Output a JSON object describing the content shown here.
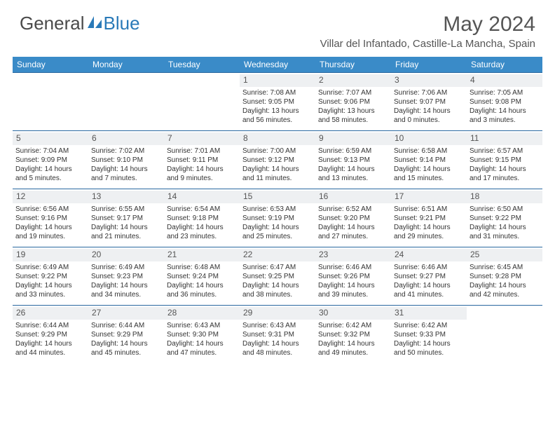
{
  "logo": {
    "text1": "General",
    "text2": "Blue"
  },
  "title": "May 2024",
  "location": "Villar del Infantado, Castille-La Mancha, Spain",
  "colors": {
    "header_bg": "#3a8bc8",
    "header_text": "#ffffff",
    "row_border": "#2968a0",
    "daynum_bg": "#eef0f2",
    "text": "#333333",
    "title_text": "#555555"
  },
  "day_headers": [
    "Sunday",
    "Monday",
    "Tuesday",
    "Wednesday",
    "Thursday",
    "Friday",
    "Saturday"
  ],
  "weeks": [
    [
      {
        "n": "",
        "sr": "",
        "ss": "",
        "dl": ""
      },
      {
        "n": "",
        "sr": "",
        "ss": "",
        "dl": ""
      },
      {
        "n": "",
        "sr": "",
        "ss": "",
        "dl": ""
      },
      {
        "n": "1",
        "sr": "Sunrise: 7:08 AM",
        "ss": "Sunset: 9:05 PM",
        "dl": "Daylight: 13 hours and 56 minutes."
      },
      {
        "n": "2",
        "sr": "Sunrise: 7:07 AM",
        "ss": "Sunset: 9:06 PM",
        "dl": "Daylight: 13 hours and 58 minutes."
      },
      {
        "n": "3",
        "sr": "Sunrise: 7:06 AM",
        "ss": "Sunset: 9:07 PM",
        "dl": "Daylight: 14 hours and 0 minutes."
      },
      {
        "n": "4",
        "sr": "Sunrise: 7:05 AM",
        "ss": "Sunset: 9:08 PM",
        "dl": "Daylight: 14 hours and 3 minutes."
      }
    ],
    [
      {
        "n": "5",
        "sr": "Sunrise: 7:04 AM",
        "ss": "Sunset: 9:09 PM",
        "dl": "Daylight: 14 hours and 5 minutes."
      },
      {
        "n": "6",
        "sr": "Sunrise: 7:02 AM",
        "ss": "Sunset: 9:10 PM",
        "dl": "Daylight: 14 hours and 7 minutes."
      },
      {
        "n": "7",
        "sr": "Sunrise: 7:01 AM",
        "ss": "Sunset: 9:11 PM",
        "dl": "Daylight: 14 hours and 9 minutes."
      },
      {
        "n": "8",
        "sr": "Sunrise: 7:00 AM",
        "ss": "Sunset: 9:12 PM",
        "dl": "Daylight: 14 hours and 11 minutes."
      },
      {
        "n": "9",
        "sr": "Sunrise: 6:59 AM",
        "ss": "Sunset: 9:13 PM",
        "dl": "Daylight: 14 hours and 13 minutes."
      },
      {
        "n": "10",
        "sr": "Sunrise: 6:58 AM",
        "ss": "Sunset: 9:14 PM",
        "dl": "Daylight: 14 hours and 15 minutes."
      },
      {
        "n": "11",
        "sr": "Sunrise: 6:57 AM",
        "ss": "Sunset: 9:15 PM",
        "dl": "Daylight: 14 hours and 17 minutes."
      }
    ],
    [
      {
        "n": "12",
        "sr": "Sunrise: 6:56 AM",
        "ss": "Sunset: 9:16 PM",
        "dl": "Daylight: 14 hours and 19 minutes."
      },
      {
        "n": "13",
        "sr": "Sunrise: 6:55 AM",
        "ss": "Sunset: 9:17 PM",
        "dl": "Daylight: 14 hours and 21 minutes."
      },
      {
        "n": "14",
        "sr": "Sunrise: 6:54 AM",
        "ss": "Sunset: 9:18 PM",
        "dl": "Daylight: 14 hours and 23 minutes."
      },
      {
        "n": "15",
        "sr": "Sunrise: 6:53 AM",
        "ss": "Sunset: 9:19 PM",
        "dl": "Daylight: 14 hours and 25 minutes."
      },
      {
        "n": "16",
        "sr": "Sunrise: 6:52 AM",
        "ss": "Sunset: 9:20 PM",
        "dl": "Daylight: 14 hours and 27 minutes."
      },
      {
        "n": "17",
        "sr": "Sunrise: 6:51 AM",
        "ss": "Sunset: 9:21 PM",
        "dl": "Daylight: 14 hours and 29 minutes."
      },
      {
        "n": "18",
        "sr": "Sunrise: 6:50 AM",
        "ss": "Sunset: 9:22 PM",
        "dl": "Daylight: 14 hours and 31 minutes."
      }
    ],
    [
      {
        "n": "19",
        "sr": "Sunrise: 6:49 AM",
        "ss": "Sunset: 9:22 PM",
        "dl": "Daylight: 14 hours and 33 minutes."
      },
      {
        "n": "20",
        "sr": "Sunrise: 6:49 AM",
        "ss": "Sunset: 9:23 PM",
        "dl": "Daylight: 14 hours and 34 minutes."
      },
      {
        "n": "21",
        "sr": "Sunrise: 6:48 AM",
        "ss": "Sunset: 9:24 PM",
        "dl": "Daylight: 14 hours and 36 minutes."
      },
      {
        "n": "22",
        "sr": "Sunrise: 6:47 AM",
        "ss": "Sunset: 9:25 PM",
        "dl": "Daylight: 14 hours and 38 minutes."
      },
      {
        "n": "23",
        "sr": "Sunrise: 6:46 AM",
        "ss": "Sunset: 9:26 PM",
        "dl": "Daylight: 14 hours and 39 minutes."
      },
      {
        "n": "24",
        "sr": "Sunrise: 6:46 AM",
        "ss": "Sunset: 9:27 PM",
        "dl": "Daylight: 14 hours and 41 minutes."
      },
      {
        "n": "25",
        "sr": "Sunrise: 6:45 AM",
        "ss": "Sunset: 9:28 PM",
        "dl": "Daylight: 14 hours and 42 minutes."
      }
    ],
    [
      {
        "n": "26",
        "sr": "Sunrise: 6:44 AM",
        "ss": "Sunset: 9:29 PM",
        "dl": "Daylight: 14 hours and 44 minutes."
      },
      {
        "n": "27",
        "sr": "Sunrise: 6:44 AM",
        "ss": "Sunset: 9:29 PM",
        "dl": "Daylight: 14 hours and 45 minutes."
      },
      {
        "n": "28",
        "sr": "Sunrise: 6:43 AM",
        "ss": "Sunset: 9:30 PM",
        "dl": "Daylight: 14 hours and 47 minutes."
      },
      {
        "n": "29",
        "sr": "Sunrise: 6:43 AM",
        "ss": "Sunset: 9:31 PM",
        "dl": "Daylight: 14 hours and 48 minutes."
      },
      {
        "n": "30",
        "sr": "Sunrise: 6:42 AM",
        "ss": "Sunset: 9:32 PM",
        "dl": "Daylight: 14 hours and 49 minutes."
      },
      {
        "n": "31",
        "sr": "Sunrise: 6:42 AM",
        "ss": "Sunset: 9:33 PM",
        "dl": "Daylight: 14 hours and 50 minutes."
      },
      {
        "n": "",
        "sr": "",
        "ss": "",
        "dl": ""
      }
    ]
  ]
}
